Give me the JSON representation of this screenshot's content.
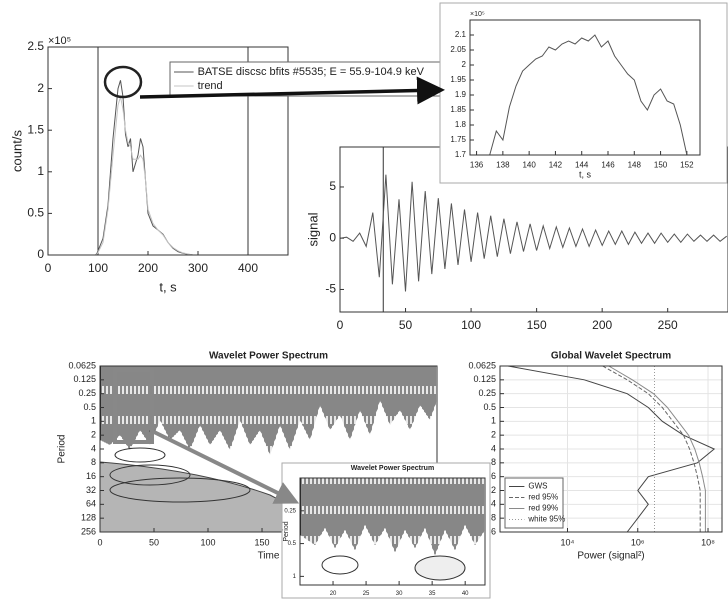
{
  "chart_data": [
    {
      "type": "line",
      "ylabel": "count/s",
      "xlabel": "t, s",
      "y_exponent": "×10⁵",
      "legend": "upper right",
      "x": [
        0,
        95,
        98,
        100,
        110,
        120,
        130,
        140,
        145,
        150,
        155,
        160,
        165,
        170,
        180,
        185,
        190,
        195,
        200,
        210,
        220,
        230,
        240,
        250,
        260,
        270,
        280,
        290,
        300,
        350,
        400,
        450,
        480
      ],
      "series": [
        {
          "name": "BATSE discsc bfits #5535; E = 55.9-104.9 keV",
          "color": "#555555",
          "values": [
            0,
            0,
            2000,
            5000,
            20000,
            60000,
            140000,
            200000,
            210000,
            190000,
            145000,
            130000,
            140000,
            100000,
            120000,
            140000,
            130000,
            90000,
            50000,
            35000,
            30000,
            25000,
            15000,
            8000,
            4000,
            2000,
            1000,
            0,
            0,
            0,
            0,
            0,
            0
          ]
        },
        {
          "name": "trend",
          "color": "#c4c4c4",
          "values": [
            0,
            0,
            1000,
            3000,
            15000,
            55000,
            120000,
            180000,
            190000,
            175000,
            150000,
            135000,
            130000,
            115000,
            115000,
            120000,
            115000,
            90000,
            55000,
            38000,
            30000,
            24000,
            15000,
            9000,
            5000,
            2500,
            1200,
            0,
            0,
            0,
            0,
            0,
            0
          ]
        }
      ],
      "xlim": [
        0,
        480
      ],
      "xticks": [
        0,
        100,
        200,
        300,
        400
      ],
      "ylim": [
        0,
        250000
      ],
      "yticks": [
        0,
        {
          "value": 50000,
          "label": "0.5"
        },
        {
          "value": 100000,
          "label": "1"
        },
        {
          "value": 150000,
          "label": "1.5"
        },
        {
          "value": 200000,
          "label": "2"
        },
        {
          "value": 250000,
          "label": "2.5"
        }
      ],
      "vlines": [
        100,
        400
      ]
    },
    {
      "type": "line",
      "xlabel": "t, s",
      "y_exponent": "×10⁵",
      "color": "#555555",
      "x": [
        137,
        137.5,
        138,
        138.5,
        139,
        139.5,
        140,
        140.5,
        141,
        141.5,
        142,
        142.5,
        143,
        143.5,
        144,
        144.5,
        145,
        145.5,
        146,
        146.5,
        147,
        147.5,
        148,
        148.5,
        149,
        149.5,
        150,
        150.5,
        151,
        151.5,
        152
      ],
      "values": [
        170000,
        178000,
        175000,
        186000,
        193000,
        198000,
        200000,
        202000,
        203000,
        206000,
        205000,
        207000,
        208000,
        207000,
        209000,
        208000,
        210000,
        206000,
        208000,
        203000,
        200000,
        197000,
        195000,
        188000,
        185000,
        190000,
        192000,
        188000,
        187000,
        180000,
        170000
      ],
      "xlim": [
        135.5,
        153
      ],
      "xticks": [
        136,
        138,
        140,
        142,
        144,
        146,
        148,
        150,
        152
      ],
      "ylim": [
        170000,
        215000
      ],
      "yticks": [
        {
          "value": 170000,
          "label": "1.7"
        },
        {
          "value": 175000,
          "label": "1.75"
        },
        {
          "value": 180000,
          "label": "1.8"
        },
        {
          "value": 185000,
          "label": "1.85"
        },
        {
          "value": 190000,
          "label": "1.9"
        },
        {
          "value": 195000,
          "label": "1.95"
        },
        {
          "value": 200000,
          "label": "2"
        },
        {
          "value": 205000,
          "label": "2.05"
        },
        {
          "value": 210000,
          "label": "2.1"
        }
      ]
    },
    {
      "type": "line",
      "ylabel": "signal",
      "color": "#555555",
      "x": [
        0,
        5,
        10,
        15,
        20,
        25,
        30,
        35,
        40,
        45,
        50,
        55,
        60,
        65,
        70,
        75,
        80,
        85,
        90,
        95,
        100,
        105,
        110,
        115,
        120,
        125,
        130,
        135,
        140,
        145,
        150,
        155,
        160,
        165,
        170,
        175,
        180,
        185,
        190,
        195,
        200,
        205,
        210,
        215,
        220,
        225,
        230,
        235,
        240,
        245,
        250,
        255,
        260,
        265,
        270,
        275,
        280,
        285,
        290,
        295
      ],
      "values": [
        0,
        0.1,
        -0.3,
        0.5,
        -0.8,
        2.5,
        -3.8,
        6.2,
        -4.5,
        3.8,
        -5.2,
        5.5,
        -4.2,
        4.6,
        -3.5,
        3.9,
        -3,
        3.4,
        -2.6,
        2.8,
        -2.3,
        2.5,
        -2,
        2.2,
        -1.8,
        1.9,
        -1.5,
        1.6,
        -1.3,
        1.4,
        -1.2,
        1.2,
        -1,
        1.1,
        -0.9,
        1,
        -0.8,
        0.9,
        -0.8,
        0.8,
        -0.7,
        0.7,
        -0.6,
        0.7,
        -0.6,
        0.6,
        -0.5,
        0.5,
        -0.5,
        0.5,
        -0.4,
        0.4,
        -0.4,
        0.4,
        -0.3,
        0.3,
        -0.3,
        0.3,
        -0.3,
        0.2
      ],
      "xlim": [
        0,
        296
      ],
      "xticks": [
        0,
        50,
        100,
        150,
        200,
        250
      ],
      "ylim": [
        -7.2,
        8.9
      ],
      "yticks": [
        -5,
        0,
        5
      ],
      "vlines": [
        33
      ]
    },
    {
      "type": "contour",
      "title": "Wavelet Power Spectrum",
      "xlabel": "Time",
      "ylabel": "Period",
      "log_y": true,
      "y_reversed": true,
      "ylim": [
        0.0625,
        256
      ],
      "yticks": [
        0.0625,
        0.125,
        0.25,
        0.5,
        1,
        2,
        4,
        8,
        16,
        32,
        64,
        128,
        256
      ],
      "xlim": [
        0,
        312
      ],
      "xticks": [
        0,
        50,
        100,
        150
      ]
    },
    {
      "type": "line",
      "title": "Global Wavelet Spectrum",
      "xlabel": "Power (signal²)",
      "log_x": true,
      "log_y": true,
      "y_reversed": true,
      "grid": true,
      "legend": "lower left",
      "y": [
        0.0625,
        0.125,
        0.25,
        0.5,
        1,
        2,
        4,
        8,
        16,
        32,
        64,
        128,
        256
      ],
      "series": [
        {
          "name": "GWS",
          "color": "#444444",
          "values": [
            200,
            30000,
            500000,
            2000000,
            5000000,
            20000000,
            150000000,
            50000000,
            2000000,
            1000000,
            2000000,
            1000000,
            500000
          ]
        },
        {
          "name": "red 95%",
          "color": "#666666",
          "dash": "dashed",
          "values": [
            100000,
            500000,
            2000000,
            5000000,
            10000000,
            20000000,
            30000000,
            40000000,
            50000000,
            60000000,
            60000000,
            60000000,
            60000000
          ]
        },
        {
          "name": "red 99%",
          "color": "#8a8a8a",
          "values": [
            150000,
            700000,
            2800000,
            7000000,
            14000000,
            28000000,
            42000000,
            56000000,
            70000000,
            84000000,
            84000000,
            84000000,
            84000000
          ]
        },
        {
          "name": "white 95%",
          "color": "#9a9a9a",
          "dash": "dotted",
          "values": [
            3000000,
            3000000,
            3000000,
            3000000,
            3000000,
            3000000,
            3000000,
            3000000,
            3000000,
            3000000,
            3000000,
            3000000,
            3000000
          ]
        }
      ],
      "xlim": [
        120,
        250000000
      ],
      "xticks": [
        {
          "value": 10000,
          "label": "10⁴"
        },
        {
          "value": 1000000,
          "label": "10⁶"
        },
        {
          "value": 100000000,
          "label": "10⁸"
        }
      ],
      "ylim": [
        0.0625,
        256
      ],
      "yticks": [
        0.0625,
        0.125,
        0.25,
        0.5,
        1,
        2,
        4,
        8,
        16,
        32,
        64,
        128,
        256
      ]
    },
    {
      "type": "contour",
      "title": "Wavelet Power Spectrum",
      "ylabel": "Period",
      "log_y": true,
      "y_reversed": true,
      "ylim": [
        0.125,
        1.2
      ],
      "yticks": [
        0.25,
        0.5,
        1
      ],
      "xlim": [
        15,
        43
      ],
      "xticks": [
        20,
        25,
        30,
        35,
        40
      ]
    }
  ]
}
